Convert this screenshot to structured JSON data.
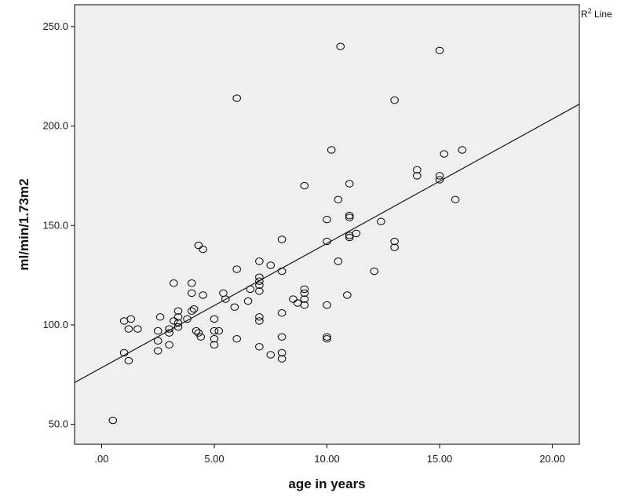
{
  "chart_data": {
    "type": "scatter",
    "title": "",
    "xlabel": "age in years",
    "ylabel": "ml/min/1.73m2",
    "xlim": [
      -1.2,
      21.2
    ],
    "ylim": [
      40,
      261
    ],
    "xticks": [
      0,
      5,
      10,
      15,
      20
    ],
    "xtick_labels": [
      ".00",
      "5.00",
      "10.00",
      "15.00",
      "20.00"
    ],
    "yticks": [
      50,
      100,
      150,
      200,
      250
    ],
    "ytick_labels": [
      "50.0",
      "100.0",
      "150.0",
      "200.0",
      "250.0"
    ],
    "grid": false,
    "legend": {
      "placement": "top-right",
      "superscript": "2",
      "label_prefix": "R",
      "label_suffix": " Line"
    },
    "colors": {
      "plot_background": "#efefef",
      "marker_stroke": "#000000",
      "line": "#1a1a1a"
    },
    "fit_line": {
      "points": [
        [
          -1.2,
          71
        ],
        [
          21.2,
          211
        ]
      ]
    },
    "points": [
      [
        0.5,
        52
      ],
      [
        1.0,
        86
      ],
      [
        1.0,
        102
      ],
      [
        1.2,
        82
      ],
      [
        1.2,
        98
      ],
      [
        1.3,
        103
      ],
      [
        1.6,
        98
      ],
      [
        2.5,
        97
      ],
      [
        2.5,
        92
      ],
      [
        2.5,
        87
      ],
      [
        2.6,
        104
      ],
      [
        3.0,
        90
      ],
      [
        3.0,
        96
      ],
      [
        3.0,
        98
      ],
      [
        3.2,
        121
      ],
      [
        3.2,
        102
      ],
      [
        3.4,
        101
      ],
      [
        3.4,
        99
      ],
      [
        3.4,
        104
      ],
      [
        3.4,
        107
      ],
      [
        3.8,
        103
      ],
      [
        4.0,
        121
      ],
      [
        4.0,
        116
      ],
      [
        4.0,
        107
      ],
      [
        4.1,
        108
      ],
      [
        4.2,
        97
      ],
      [
        4.3,
        140
      ],
      [
        4.3,
        96
      ],
      [
        4.4,
        94
      ],
      [
        4.5,
        138
      ],
      [
        4.5,
        115
      ],
      [
        5.0,
        103
      ],
      [
        5.0,
        97
      ],
      [
        5.0,
        93
      ],
      [
        5.0,
        90
      ],
      [
        5.2,
        97
      ],
      [
        5.4,
        116
      ],
      [
        5.5,
        113
      ],
      [
        5.9,
        109
      ],
      [
        6.0,
        214
      ],
      [
        6.0,
        128
      ],
      [
        6.0,
        93
      ],
      [
        6.5,
        112
      ],
      [
        6.6,
        118
      ],
      [
        7.0,
        132
      ],
      [
        7.0,
        124
      ],
      [
        7.0,
        122
      ],
      [
        7.0,
        120
      ],
      [
        7.0,
        117
      ],
      [
        7.0,
        104
      ],
      [
        7.0,
        102
      ],
      [
        7.0,
        89
      ],
      [
        7.5,
        130
      ],
      [
        7.5,
        85
      ],
      [
        8.0,
        143
      ],
      [
        8.0,
        127
      ],
      [
        8.0,
        106
      ],
      [
        8.0,
        94
      ],
      [
        8.0,
        86
      ],
      [
        8.0,
        83
      ],
      [
        8.5,
        113
      ],
      [
        8.7,
        111
      ],
      [
        9.0,
        170
      ],
      [
        9.0,
        118
      ],
      [
        9.0,
        116
      ],
      [
        9.0,
        113
      ],
      [
        9.0,
        110
      ],
      [
        10.0,
        153
      ],
      [
        10.0,
        142
      ],
      [
        10.0,
        110
      ],
      [
        10.0,
        94
      ],
      [
        10.0,
        93
      ],
      [
        10.2,
        188
      ],
      [
        10.5,
        163
      ],
      [
        10.5,
        132
      ],
      [
        10.6,
        240
      ],
      [
        10.9,
        115
      ],
      [
        11.0,
        171
      ],
      [
        11.0,
        155
      ],
      [
        11.0,
        154
      ],
      [
        11.0,
        145
      ],
      [
        11.0,
        144
      ],
      [
        11.3,
        146
      ],
      [
        12.1,
        127
      ],
      [
        12.4,
        152
      ],
      [
        13.0,
        213
      ],
      [
        13.0,
        142
      ],
      [
        13.0,
        139
      ],
      [
        14.0,
        178
      ],
      [
        14.0,
        175
      ],
      [
        15.0,
        238
      ],
      [
        15.0,
        175
      ],
      [
        15.0,
        173
      ],
      [
        15.2,
        186
      ],
      [
        15.7,
        163
      ],
      [
        16.0,
        188
      ]
    ]
  }
}
